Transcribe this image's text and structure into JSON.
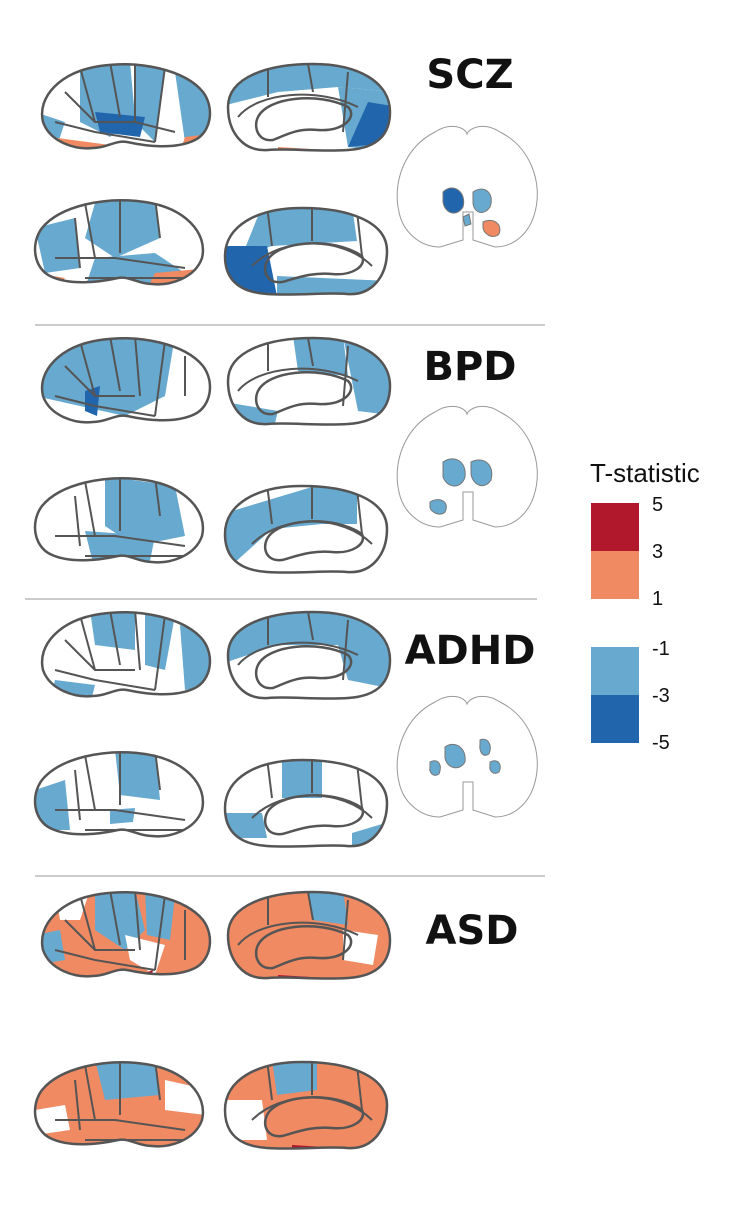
{
  "panels": [
    {
      "label": "SCZ"
    },
    {
      "label": "BPD"
    },
    {
      "label": "ADHD"
    },
    {
      "label": "ASD"
    }
  ],
  "legend": {
    "title": "T-statistic",
    "positive_ticks": [
      "5",
      "3",
      "1"
    ],
    "negative_ticks": [
      "-1",
      "-3",
      "-5"
    ],
    "colors": {
      "strong_positive": "#B2182B",
      "positive": "#EF8A62",
      "negative": "#67A9CF",
      "strong_negative": "#2166AC",
      "none": "#FFFFFF"
    }
  }
}
